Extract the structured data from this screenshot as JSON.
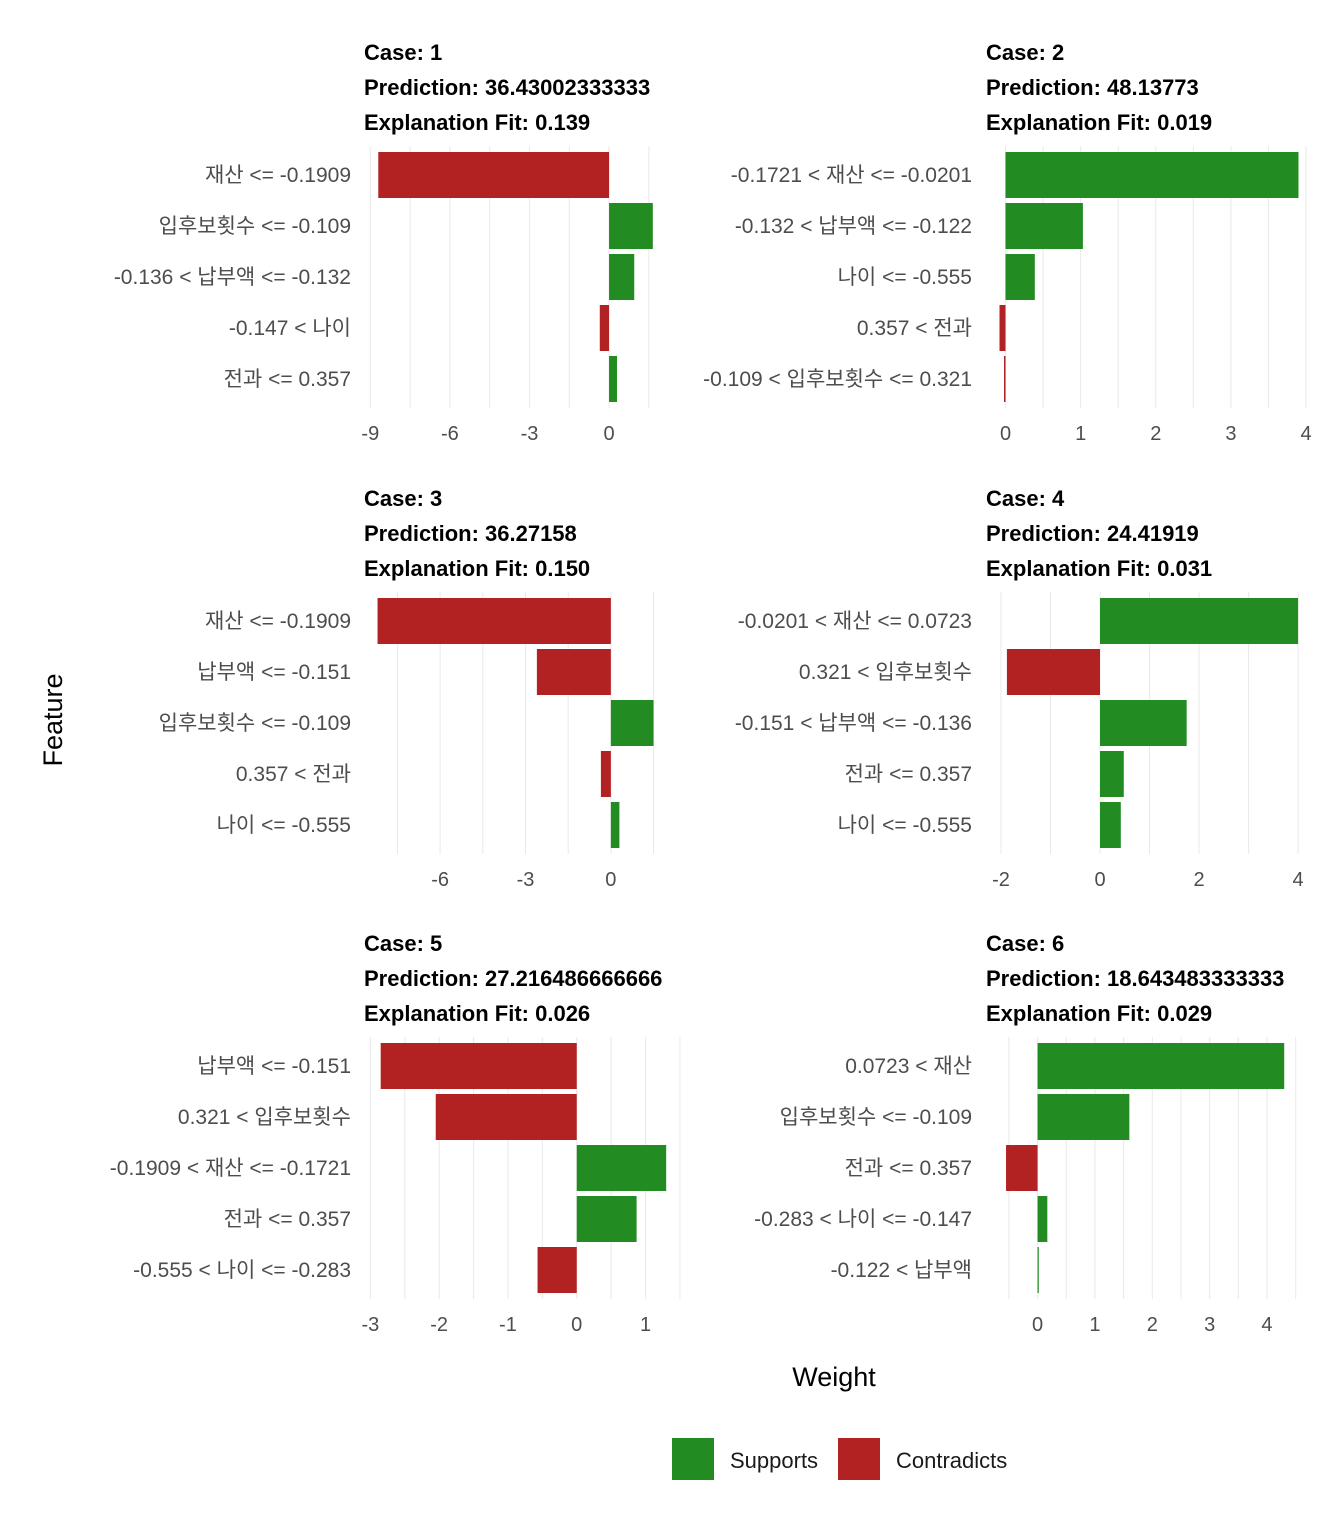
{
  "chart_data": {
    "type": "bar",
    "xlabel": "Weight",
    "ylabel": "Feature",
    "legend": {
      "placement": "bottom",
      "entries": [
        {
          "name": "Supports",
          "color": "#228B22"
        },
        {
          "name": "Contradicts",
          "color": "#B22222"
        }
      ]
    },
    "panels": [
      {
        "case": "Case: 1",
        "prediction": "Prediction: 36.43002333333",
        "fit": "Explanation Fit: 0.139",
        "xlim": [
          -9.05,
          2.75
        ],
        "ticks": [
          -9,
          -6,
          -3,
          0
        ],
        "features": [
          {
            "label": "재산 <= -0.1909",
            "weight": -8.7
          },
          {
            "label": "입후보횟수 <= -0.109",
            "weight": 1.65
          },
          {
            "label": "-0.136 < 납부액 <= -0.132",
            "weight": 0.95
          },
          {
            "label": "-0.147 < 나이",
            "weight": -0.35
          },
          {
            "label": "전과 <= 0.357",
            "weight": 0.3
          }
        ]
      },
      {
        "case": "Case: 2",
        "prediction": "Prediction: 48.13773",
        "fit": "Explanation Fit: 0.019",
        "xlim": [
          -0.1,
          4.0
        ],
        "ticks": [
          0,
          1,
          2,
          3,
          4
        ],
        "features": [
          {
            "label": "-0.1721 < 재산 <= -0.0201",
            "weight": 3.9
          },
          {
            "label": "-0.132 < 납부액 <= -0.122",
            "weight": 1.03
          },
          {
            "label": "나이 <= -0.555",
            "weight": 0.39
          },
          {
            "label": "0.357 < 전과",
            "weight": -0.08
          },
          {
            "label": "-0.109 < 입후보횟수 <= 0.321",
            "weight": -0.02
          }
        ]
      },
      {
        "case": "Case: 3",
        "prediction": "Prediction: 36.27158",
        "fit": "Explanation Fit: 0.150",
        "xlim": [
          -8.5,
          2.5
        ],
        "ticks": [
          -6,
          -3,
          0
        ],
        "features": [
          {
            "label": "재산 <= -0.1909",
            "weight": -8.2
          },
          {
            "label": "납부액 <= -0.151",
            "weight": -2.6
          },
          {
            "label": "입후보횟수 <= -0.109",
            "weight": 1.5
          },
          {
            "label": "0.357 < 전과",
            "weight": -0.35
          },
          {
            "label": "나이 <= -0.555",
            "weight": 0.3
          }
        ]
      },
      {
        "case": "Case: 4",
        "prediction": "Prediction: 24.41919",
        "fit": "Explanation Fit: 0.031",
        "xlim": [
          -2.06,
          4.16
        ],
        "ticks": [
          -2,
          0,
          2,
          4
        ],
        "features": [
          {
            "label": "-0.0201 < 재산 <= 0.0723",
            "weight": 4.0
          },
          {
            "label": "0.321 < 입후보횟수",
            "weight": -1.88
          },
          {
            "label": "-0.151 < 납부액 <= -0.136",
            "weight": 1.75
          },
          {
            "label": "전과 <= 0.357",
            "weight": 0.48
          },
          {
            "label": "나이 <= -0.555",
            "weight": 0.42
          }
        ]
      },
      {
        "case": "Case: 5",
        "prediction": "Prediction: 27.216486666666",
        "fit": "Explanation Fit: 0.026",
        "xlim": [
          -3.02,
          1.53
        ],
        "ticks": [
          -3,
          -2,
          -1,
          0,
          1
        ],
        "features": [
          {
            "label": "납부액 <= -0.151",
            "weight": -2.85
          },
          {
            "label": "0.321 < 입후보횟수",
            "weight": -2.05
          },
          {
            "label": "-0.1909 < 재산 <= -0.1721",
            "weight": 1.3
          },
          {
            "label": "전과 <= 0.357",
            "weight": 0.87
          },
          {
            "label": "-0.555 < 나이 <= -0.283",
            "weight": -0.57
          }
        ]
      },
      {
        "case": "Case: 6",
        "prediction": "Prediction: 18.643483333333",
        "fit": "Explanation Fit: 0.029",
        "xlim": [
          -0.69,
          4.68
        ],
        "ticks": [
          0,
          1,
          2,
          3,
          4
        ],
        "features": [
          {
            "label": "0.0723 < 재산",
            "weight": 4.3
          },
          {
            "label": "입후보횟수 <= -0.109",
            "weight": 1.6
          },
          {
            "label": "전과 <= 0.357",
            "weight": -0.55
          },
          {
            "label": "-0.283 < 나이 <= -0.147",
            "weight": 0.17
          },
          {
            "label": "-0.122 < 납부액",
            "weight": 0.02
          }
        ]
      }
    ]
  }
}
